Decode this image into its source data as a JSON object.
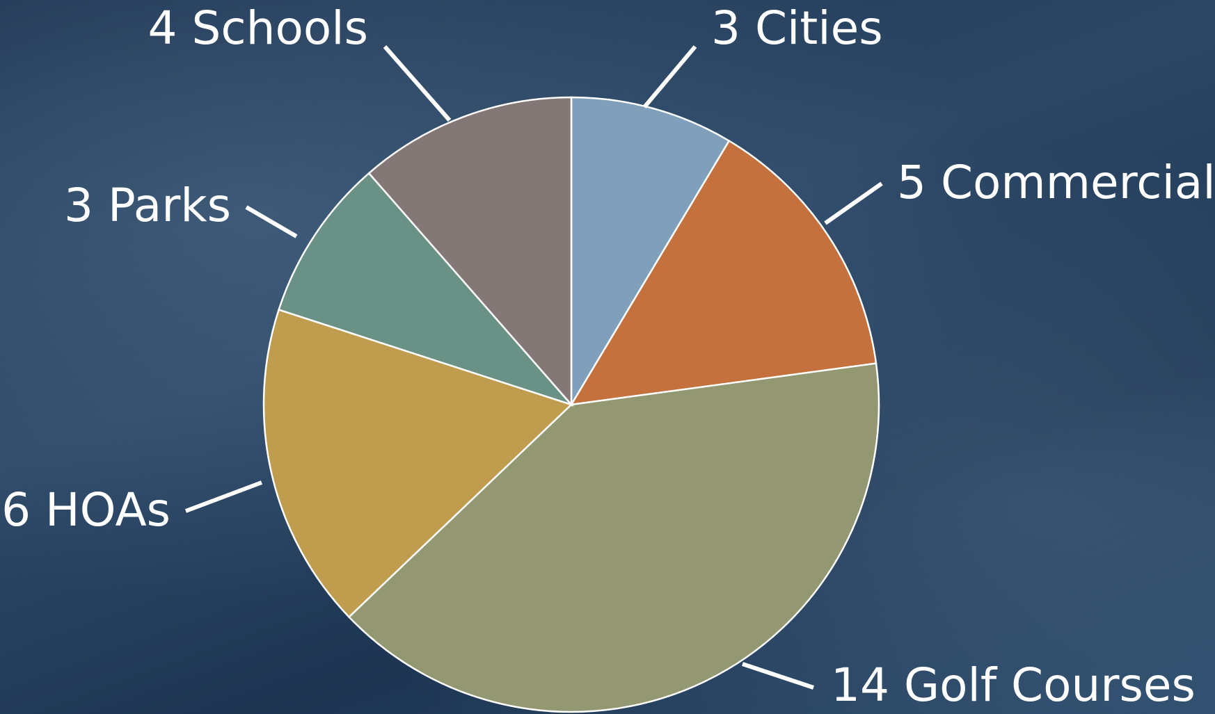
{
  "chart_data": {
    "type": "pie",
    "categories": [
      "3 Cities",
      "5 Commercial",
      "14 Golf Courses",
      "6 HOAs",
      "3 Parks",
      "4 Schools"
    ],
    "values": [
      3,
      5,
      14,
      6,
      3,
      4
    ],
    "colors": [
      "#7f9fba",
      "#c5713e",
      "#939872",
      "#c09c4f",
      "#6a9186",
      "#847876"
    ]
  }
}
